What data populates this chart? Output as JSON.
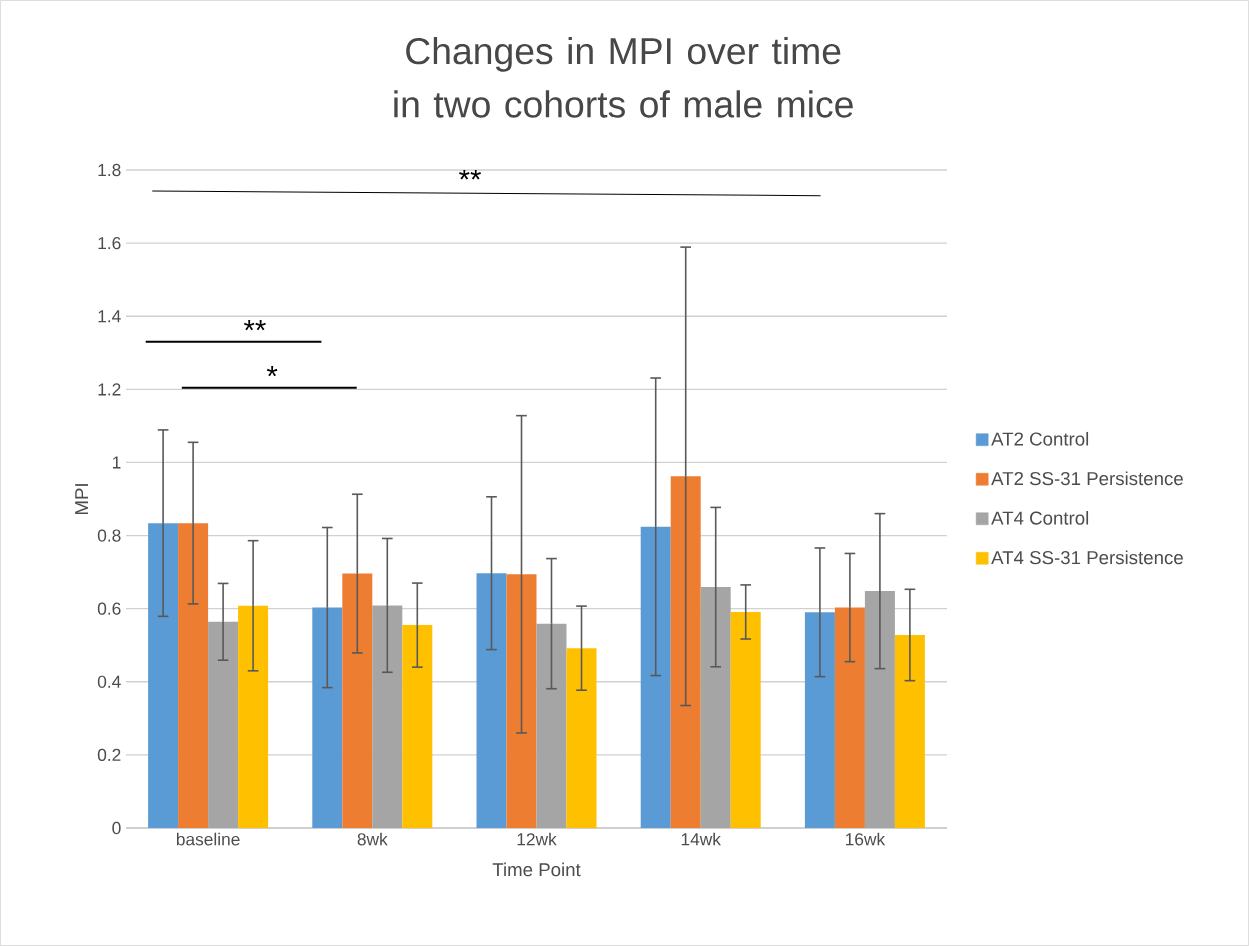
{
  "chart_data": {
    "type": "bar",
    "title": "Changes in MPI over time in two cohorts of male mice",
    "xlabel": "Time Point",
    "ylabel": "MPI",
    "categories": [
      "baseline",
      "8wk",
      "12wk",
      "14wk",
      "16wk"
    ],
    "series": [
      {
        "name": "AT2 Control",
        "color": "#5b9bd5",
        "values": [
          0.834,
          0.603,
          0.697,
          0.824,
          0.59
        ],
        "errors": [
          0.255,
          0.219,
          0.209,
          0.407,
          0.176
        ]
      },
      {
        "name": "AT2 SS-31 Persistence",
        "color": "#ed7d31",
        "values": [
          0.834,
          0.696,
          0.694,
          0.962,
          0.603
        ],
        "errors": [
          0.221,
          0.217,
          0.434,
          0.627,
          0.148
        ]
      },
      {
        "name": "AT4 Control",
        "color": "#a5a5a5",
        "values": [
          0.564,
          0.609,
          0.559,
          0.659,
          0.648
        ],
        "errors": [
          0.105,
          0.183,
          0.178,
          0.218,
          0.212
        ]
      },
      {
        "name": "AT4 SS-31 Persistence",
        "color": "#ffc000",
        "values": [
          0.608,
          0.555,
          0.492,
          0.591,
          0.528
        ],
        "errors": [
          0.178,
          0.115,
          0.115,
          0.074,
          0.125
        ]
      }
    ],
    "ylim": [
      0,
      1.8
    ],
    "yticks": [
      0,
      {
        "value": 0.2,
        "label": "0.2"
      },
      {
        "value": 0.4,
        "label": "0.4"
      },
      {
        "value": 0.6,
        "label": "0.6"
      },
      {
        "value": 0.8,
        "label": "0.8"
      },
      1,
      {
        "value": 1.2,
        "label": "1.2"
      },
      {
        "value": 1.4,
        "label": "1.4"
      },
      {
        "value": 1.6,
        "label": "1.6"
      },
      {
        "value": 1.8,
        "label": "1.8"
      }
    ],
    "grid": "y",
    "legend": "right",
    "annotations": [
      "**",
      "**",
      "*"
    ]
  }
}
